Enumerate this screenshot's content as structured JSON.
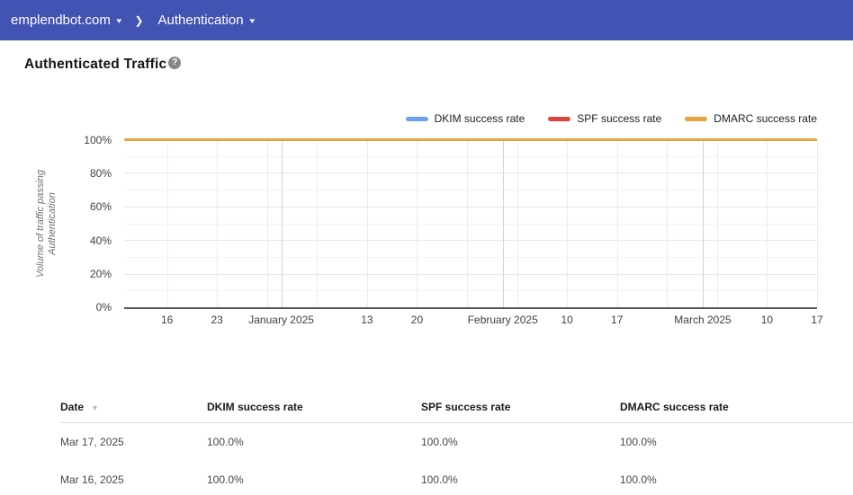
{
  "nav": {
    "domain": "emplendbot.com",
    "page": "Authentication",
    "caret": "▾",
    "separator": "❯"
  },
  "header": {
    "title": "Authenticated Traffic",
    "help_icon": "?"
  },
  "colors": {
    "topbar": "#4253b3",
    "dkim_blue": "#6F9FEE",
    "spf_red": "#D9463D",
    "dmarc_orange": "#E8A33D"
  },
  "chart": {
    "y_axis_title_lines": [
      "Volume of traffic passing",
      "Authentication"
    ],
    "legend": [
      {
        "label": "DKIM success rate",
        "color": "#6F9FEE"
      },
      {
        "label": "SPF success rate",
        "color": "#D9463D"
      },
      {
        "label": "DMARC success rate",
        "color": "#E8A33D"
      }
    ],
    "y_ticks": [
      "100%",
      "80%",
      "60%",
      "40%",
      "20%",
      "0%"
    ],
    "x_ticks": [
      {
        "label": "16",
        "day": 6
      },
      {
        "label": "23",
        "day": 13
      },
      {
        "label": "January 2025",
        "day": 22,
        "month": true
      },
      {
        "label": "13",
        "day": 34
      },
      {
        "label": "20",
        "day": 41
      },
      {
        "label": "February 2025",
        "day": 53,
        "month": true
      },
      {
        "label": "10",
        "day": 62
      },
      {
        "label": "17",
        "day": 69
      },
      {
        "label": "March 2025",
        "day": 81,
        "month": true
      },
      {
        "label": "10",
        "day": 90
      },
      {
        "label": "17",
        "day": 97
      }
    ],
    "total_days": 97,
    "week_gridline_days": [
      6,
      13,
      20,
      27,
      34,
      41,
      48,
      55,
      62,
      69,
      76,
      83,
      90,
      97
    ],
    "month_gridline_days": [
      22,
      53,
      81
    ]
  },
  "chart_data": {
    "type": "line",
    "title": "Authenticated Traffic",
    "ylabel": "Volume of traffic passing Authentication",
    "ylim": [
      0,
      100
    ],
    "y_tick_labels": [
      "0%",
      "20%",
      "40%",
      "60%",
      "80%",
      "100%"
    ],
    "x_tick_labels": [
      "16",
      "23",
      "January 2025",
      "13",
      "20",
      "February 2025",
      "10",
      "17",
      "March 2025",
      "10",
      "17"
    ],
    "x_range": [
      "2024-12-10",
      "2025-03-17"
    ],
    "grid": true,
    "legend_position": "top-right",
    "series": [
      {
        "name": "DKIM success rate",
        "color": "#6F9FEE",
        "x": [
          "2024-12-10",
          "2025-03-17"
        ],
        "values": [
          100,
          100
        ]
      },
      {
        "name": "SPF success rate",
        "color": "#D9463D",
        "x": [
          "2024-12-10",
          "2025-03-17"
        ],
        "values": [
          100,
          100
        ]
      },
      {
        "name": "DMARC success rate",
        "color": "#E8A33D",
        "x": [
          "2024-12-10",
          "2025-03-17"
        ],
        "values": [
          100,
          100
        ]
      }
    ]
  },
  "table": {
    "headers": [
      "Date",
      "DKIM success rate",
      "SPF success rate",
      "DMARC success rate"
    ],
    "sort_icon": "▼",
    "rows": [
      [
        "Mar 17, 2025",
        "100.0%",
        "100.0%",
        "100.0%"
      ],
      [
        "Mar 16, 2025",
        "100.0%",
        "100.0%",
        "100.0%"
      ]
    ]
  }
}
